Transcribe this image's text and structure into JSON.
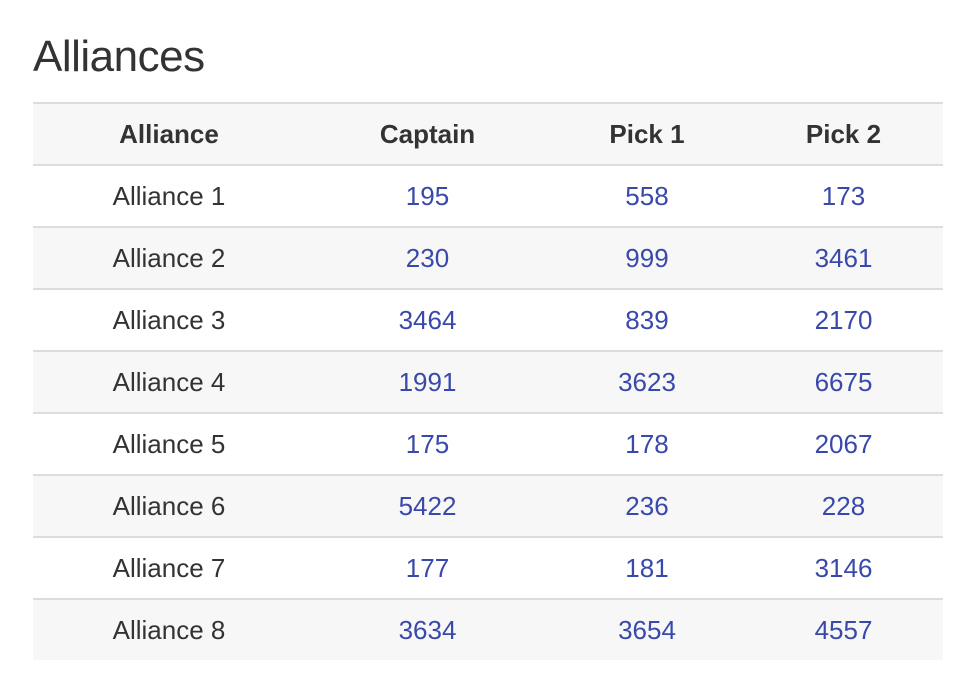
{
  "page": {
    "title": "Alliances"
  },
  "table": {
    "headers": [
      "Alliance",
      "Captain",
      "Pick 1",
      "Pick 2"
    ],
    "rows": [
      {
        "alliance": "Alliance 1",
        "captain": "195",
        "pick1": "558",
        "pick2": "173"
      },
      {
        "alliance": "Alliance 2",
        "captain": "230",
        "pick1": "999",
        "pick2": "3461"
      },
      {
        "alliance": "Alliance 3",
        "captain": "3464",
        "pick1": "839",
        "pick2": "2170"
      },
      {
        "alliance": "Alliance 4",
        "captain": "1991",
        "pick1": "3623",
        "pick2": "6675"
      },
      {
        "alliance": "Alliance 5",
        "captain": "175",
        "pick1": "178",
        "pick2": "2067"
      },
      {
        "alliance": "Alliance 6",
        "captain": "5422",
        "pick1": "236",
        "pick2": "228"
      },
      {
        "alliance": "Alliance 7",
        "captain": "177",
        "pick1": "181",
        "pick2": "3146"
      },
      {
        "alliance": "Alliance 8",
        "captain": "3634",
        "pick1": "3654",
        "pick2": "4557"
      }
    ]
  },
  "colors": {
    "link": "#3949ab",
    "text": "#333333",
    "stripe": "#f7f7f7",
    "border": "#dddddd"
  }
}
